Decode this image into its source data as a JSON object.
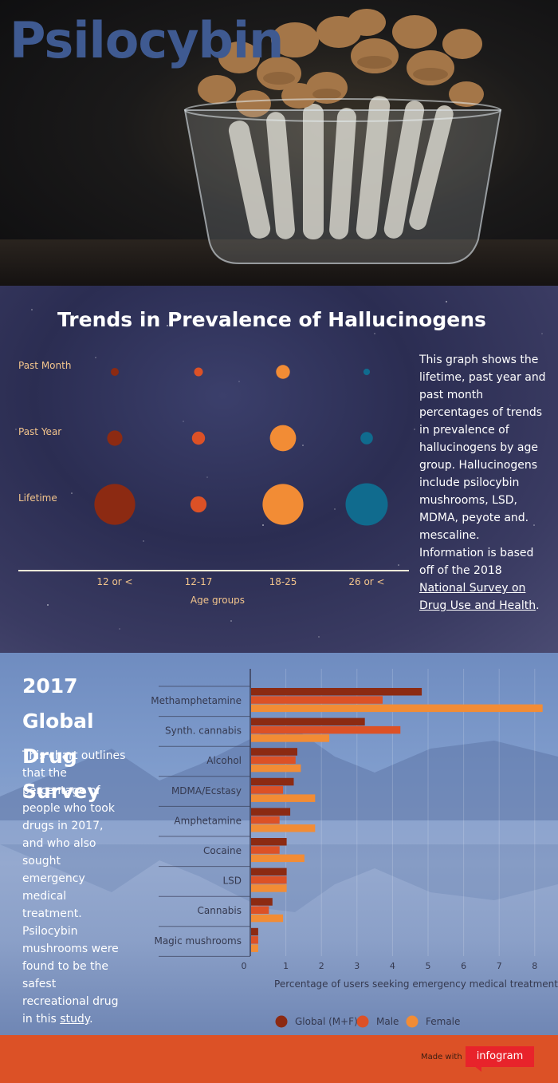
{
  "hero": {
    "title": "Psilocybin"
  },
  "bubble_section": {
    "title": "Trends in Prevalence of Hallucinogens",
    "description_before": "This graph shows the lifetime, past year and past month percentages of trends in prevalence of hallucinogens by age group. Hallucinogens include psilocybin mushrooms, LSD, MDMA, peyote and. mescaline. Information is based off of the 2018 ",
    "link_text": "National Survey on Drug Use and Health",
    "description_after": "."
  },
  "bar_section": {
    "title": "2017 Global Drug Survey",
    "description_before": "This chart outlines that the percentage of people who took drugs in 2017, and who also sought emergency medical treatment. Psilocybin mushrooms were found to be the safest recreational drug in this ",
    "link_text": "study",
    "description_after": "."
  },
  "footer": {
    "made_with": "Made with",
    "brand": "infogram"
  },
  "colors": {
    "global": "#8c2a12",
    "male": "#dc5126",
    "female": "#f28c35",
    "teal": "#106b8e",
    "footer": "#dc5126",
    "hero_title": "#3f5a91"
  },
  "chart_data": [
    {
      "type": "scatter",
      "title": "Trends in Prevalence of Hallucinogens",
      "xlabel": "Age groups",
      "x_categories": [
        "12 or <",
        "12-17",
        "18-25",
        "26 or <"
      ],
      "y_categories": [
        "Past Month",
        "Past Year",
        "Lifetime"
      ],
      "bubble_colors": [
        "#8c2a12",
        "#dc5126",
        "#f28c35",
        "#106b8e"
      ],
      "bubble_size_relative": [
        [
          0.11,
          0.12,
          0.19,
          0.09
        ],
        [
          0.21,
          0.18,
          0.36,
          0.17
        ],
        [
          0.56,
          0.22,
          0.56,
          0.58
        ]
      ]
    },
    {
      "type": "bar",
      "orientation": "horizontal",
      "title": "2017 Global Drug Survey",
      "xlabel": "Percentage of users seeking emergency medical treatment",
      "categories": [
        "Methamphetamine",
        "Synth. cannabis",
        "Alcohol",
        "MDMA/Ecstasy",
        "Amphetamine",
        "Cocaine",
        "LSD",
        "Cannabis",
        "Magic mushrooms"
      ],
      "series": [
        {
          "name": "Global (M+F)",
          "color": "#8c2a12",
          "values": [
            4.8,
            3.2,
            1.3,
            1.2,
            1.1,
            1.0,
            1.0,
            0.6,
            0.2
          ]
        },
        {
          "name": "Male",
          "color": "#dc5126",
          "values": [
            3.7,
            4.2,
            1.25,
            0.9,
            0.8,
            0.8,
            1.0,
            0.5,
            0.2
          ]
        },
        {
          "name": "Female",
          "color": "#f28c35",
          "values": [
            8.2,
            2.2,
            1.4,
            1.8,
            1.8,
            1.5,
            1.0,
            0.9,
            0.2
          ]
        }
      ],
      "xticks": [
        "0",
        "1",
        "2",
        "3",
        "4",
        "5",
        "6",
        "7",
        "8"
      ],
      "xlim": [
        0,
        8.4
      ],
      "legend": "bottom"
    }
  ]
}
